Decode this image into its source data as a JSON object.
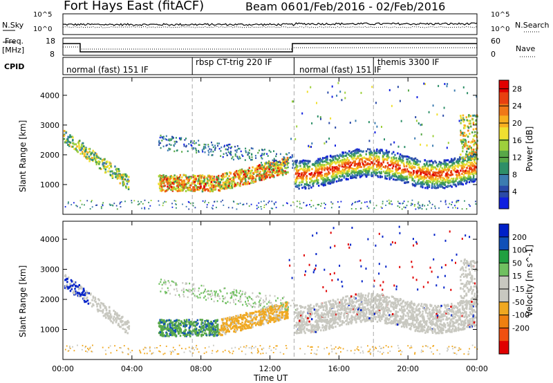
{
  "header": {
    "title_left": "Fort Hays East (fitACF)",
    "title_mid": "Beam 06",
    "title_right": "01/Feb/2016 - 02/Feb/2016"
  },
  "top_panels": {
    "nsky_label": "N.Sky",
    "nsky_tick_top": "10^5",
    "nsky_tick_bot": "10^0",
    "nsearch_label": "N.Search",
    "nsearch_tick_top": "10^5",
    "nsearch_tick_bot": "10^0",
    "freq_label": "Freq.",
    "freq_unit": "[MHz]",
    "freq_tick_top": "18",
    "freq_tick_bot": "8",
    "nave_label": "Nave",
    "nave_tick_top": "60",
    "nave_tick_bot": "0",
    "cpid_label": "CPID"
  },
  "cpid_segments": [
    {
      "label": "normal (fast) 151 IF",
      "start_hour": 0
    },
    {
      "label": "rbsp CT-trig 220 IF",
      "start_hour": 7.5
    },
    {
      "label": "normal (fast) 151 IF",
      "start_hour": 13.4
    },
    {
      "label": "themis 3300 IF",
      "start_hour": 18
    }
  ],
  "chart_data": [
    {
      "type": "heatmap",
      "name": "power",
      "ylabel": "Slant Range [km]",
      "xlabel": "Time UT",
      "x_ticks": [
        "00:00",
        "04:00",
        "08:00",
        "12:00",
        "16:00",
        "20:00",
        "00:00"
      ],
      "y_ticks": [
        "1000",
        "2000",
        "3000",
        "4000"
      ],
      "ylim": [
        0,
        4600
      ],
      "xlim_hours": [
        0,
        24
      ],
      "colorbar_label": "Power [dB]",
      "colorbar_ticks": [
        "4",
        "8",
        "12",
        "16",
        "20",
        "24",
        "28"
      ],
      "colorbar_range": [
        0,
        30
      ],
      "colorbar_colors": [
        "#1020e0",
        "#2a4aa8",
        "#3c7cb0",
        "#2e8f68",
        "#58a848",
        "#9ed03c",
        "#f0e030",
        "#f8b020",
        "#f07818",
        "#e84010",
        "#e00000"
      ]
    },
    {
      "type": "heatmap",
      "name": "velocity",
      "ylabel": "Slant Range [km]",
      "xlabel": "Time UT",
      "x_ticks": [
        "00:00",
        "04:00",
        "08:00",
        "12:00",
        "16:00",
        "20:00",
        "00:00"
      ],
      "y_ticks": [
        "1000",
        "2000",
        "3000",
        "4000"
      ],
      "ylim": [
        0,
        4600
      ],
      "xlim_hours": [
        0,
        24
      ],
      "colorbar_label": "Velocity [m s^-1]",
      "colorbar_ticks": [
        "200",
        "100",
        "50",
        "15",
        "-15",
        "-50",
        "-100",
        "-200"
      ],
      "colorbar_colors": [
        "#0020c8",
        "#1050b8",
        "#20a040",
        "#70c060",
        "#c8c8c0",
        "#c8c8c0",
        "#f0a820",
        "#f08010",
        "#f05010",
        "#e00000"
      ]
    }
  ],
  "xaxis_title": "Time UT"
}
